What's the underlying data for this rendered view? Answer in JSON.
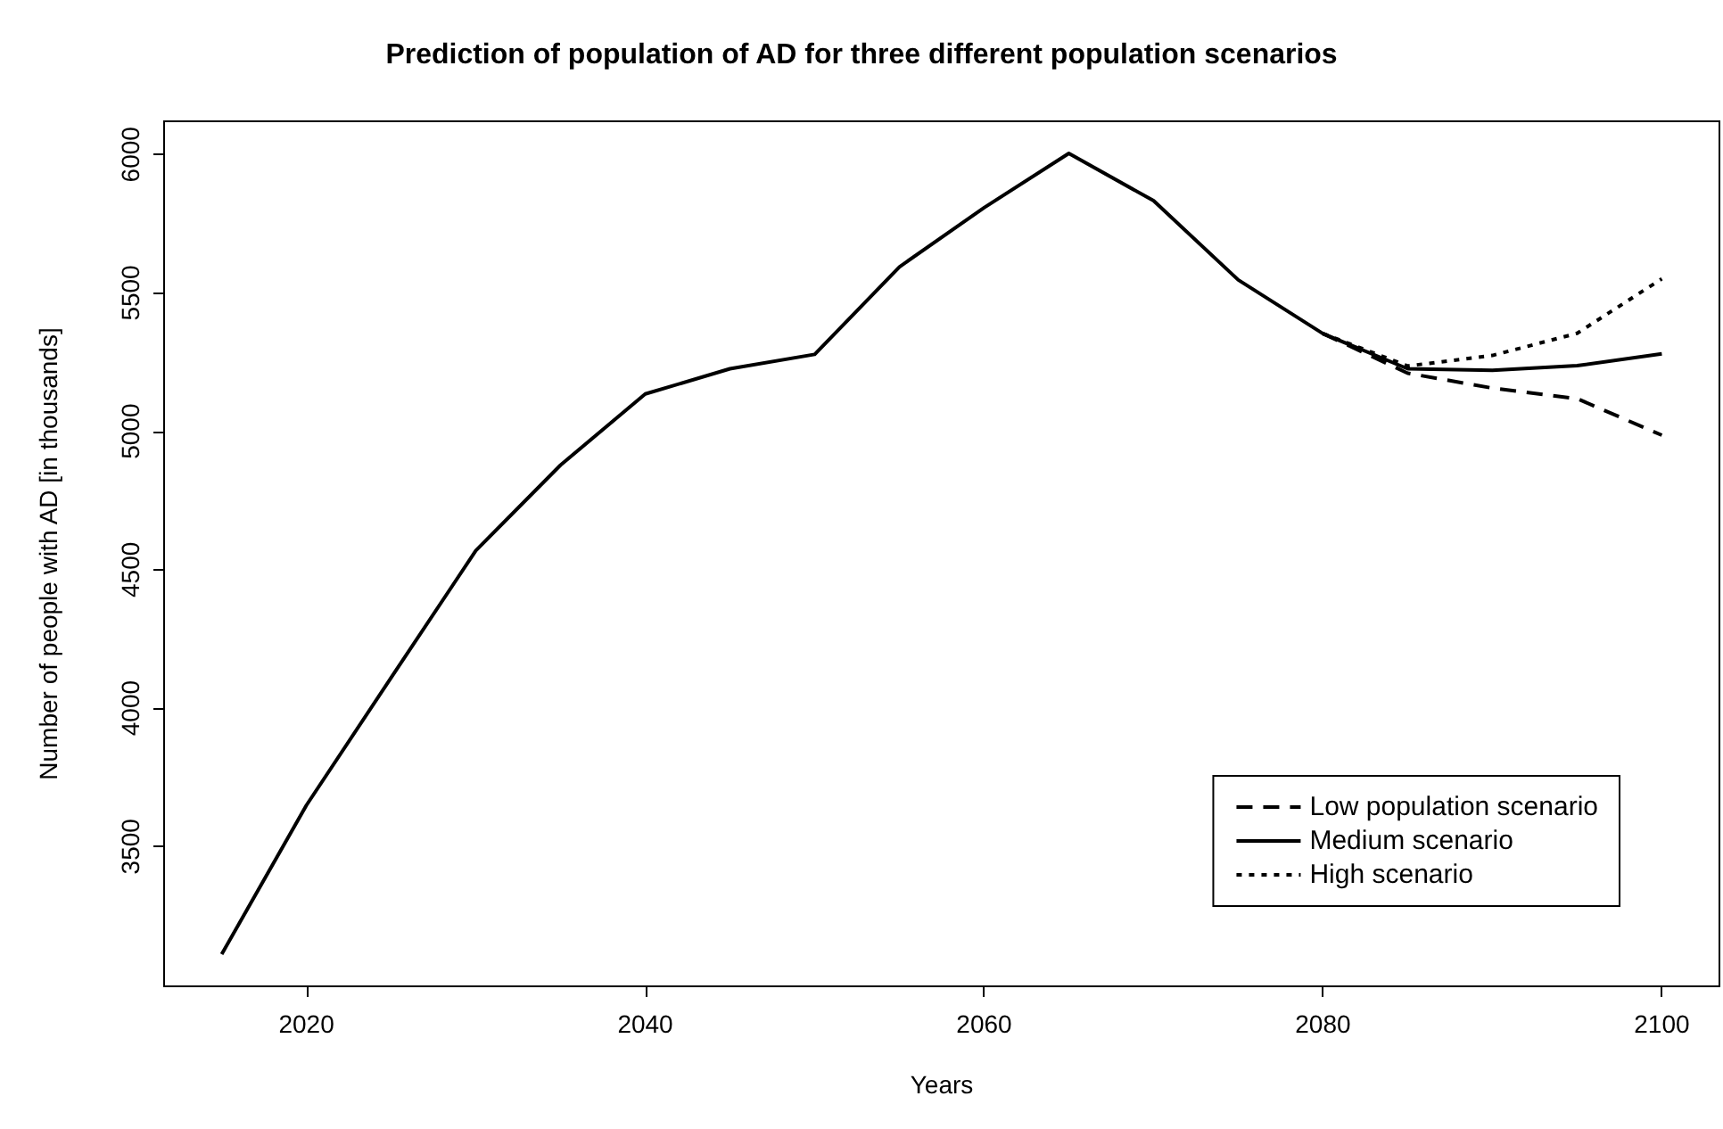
{
  "chart_data": {
    "type": "line",
    "title": "Prediction of population of AD for three different population scenarios",
    "xlabel": "Years",
    "ylabel": "Number of people with AD [in thousands]",
    "x": [
      2015,
      2020,
      2025,
      2030,
      2035,
      2040,
      2045,
      2050,
      2055,
      2060,
      2065,
      2070,
      2075,
      2080,
      2085,
      2090,
      2095,
      2100
    ],
    "series": [
      {
        "name": "Low population scenario",
        "color": "#000000",
        "line_style": "dashed",
        "values": [
          null,
          null,
          null,
          null,
          null,
          null,
          null,
          null,
          null,
          null,
          null,
          null,
          null,
          5353,
          5210,
          5156,
          5118,
          4986
        ]
      },
      {
        "name": "Medium scenario",
        "color": "#000000",
        "line_style": "solid",
        "values": [
          3111,
          3649,
          4110,
          4569,
          4878,
          5135,
          5226,
          5278,
          5594,
          5808,
          6004,
          5833,
          5547,
          5353,
          5226,
          5220,
          5237,
          5280
        ]
      },
      {
        "name": "High scenario",
        "color": "#000000",
        "line_style": "dotted",
        "values": [
          null,
          null,
          null,
          null,
          null,
          null,
          null,
          null,
          null,
          null,
          null,
          null,
          null,
          5353,
          5236,
          5274,
          5354,
          5551
        ]
      }
    ],
    "xlim": [
      2011.6,
      2103.4
    ],
    "xticks": [
      2020,
      2040,
      2060,
      2080,
      2100
    ],
    "ylim": [
      2995,
      6120
    ],
    "yticks": [
      3500,
      4000,
      4500,
      5000,
      5500,
      6000
    ],
    "grid": false,
    "legend": "bottom right",
    "marker": "none"
  }
}
